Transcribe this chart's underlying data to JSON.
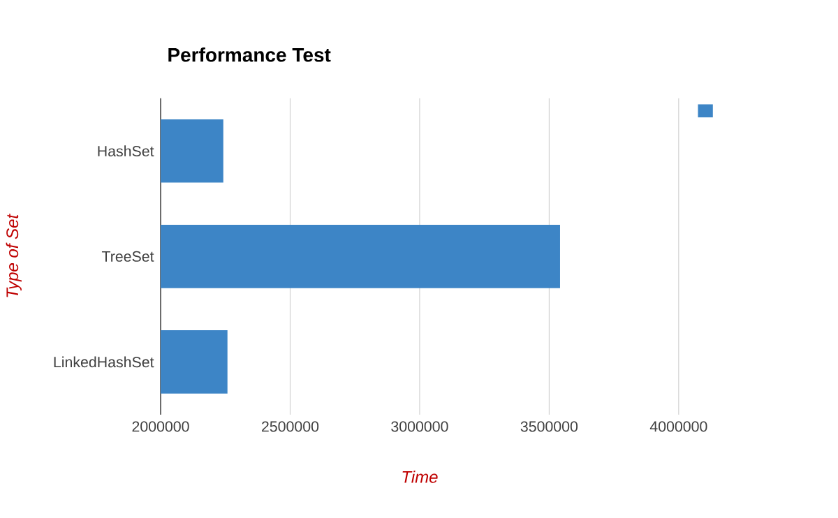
{
  "chart_data": {
    "type": "bar",
    "orientation": "horizontal",
    "title": "Performance Test",
    "xlabel": "Time",
    "ylabel": "Type of Set",
    "categories": [
      "HashSet",
      "TreeSet",
      "LinkedHashSet"
    ],
    "series": [
      {
        "color": "#3d85c6",
        "values": [
          2242000,
          3542000,
          2258000
        ]
      }
    ],
    "xlim": [
      2000000,
      4000000
    ],
    "xticks": [
      2000000,
      2500000,
      3000000,
      3500000,
      4000000
    ],
    "grid": "x"
  }
}
